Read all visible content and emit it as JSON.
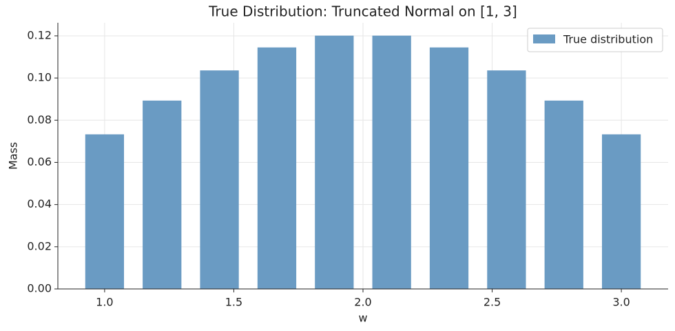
{
  "chart_data": {
    "type": "bar",
    "title": "True Distribution: Truncated Normal on [1, 3]",
    "x_label": "w",
    "y_label": "Mass",
    "x": [
      1.0,
      1.2222,
      1.4444,
      1.6667,
      1.8889,
      2.1111,
      2.3333,
      2.5556,
      2.7778,
      3.0
    ],
    "series": [
      {
        "name": "True distribution",
        "color": "#6a9bc3",
        "values": [
          0.0733,
          0.0893,
          0.1036,
          0.1145,
          0.1201,
          0.1201,
          0.1145,
          0.1036,
          0.0893,
          0.0733
        ]
      }
    ],
    "xlim": [
      0.819,
      3.181
    ],
    "ylim": [
      0,
      0.1262
    ],
    "xticks": [
      {
        "value": 1.0,
        "label": "1.0"
      },
      {
        "value": 1.5,
        "label": "1.5"
      },
      {
        "value": 2.0,
        "label": "2.0"
      },
      {
        "value": 2.5,
        "label": "2.5"
      },
      {
        "value": 3.0,
        "label": "3.0"
      }
    ],
    "yticks": [
      {
        "value": 0,
        "label": "0.00"
      },
      {
        "value": 0.02,
        "label": "0.02"
      },
      {
        "value": 0.04,
        "label": "0.04"
      },
      {
        "value": 0.06,
        "label": "0.06"
      },
      {
        "value": 0.08,
        "label": "0.08"
      },
      {
        "value": 0.1,
        "label": "0.10"
      },
      {
        "value": 0.12,
        "label": "0.12"
      }
    ],
    "grid": true,
    "legend": "upper-right"
  }
}
